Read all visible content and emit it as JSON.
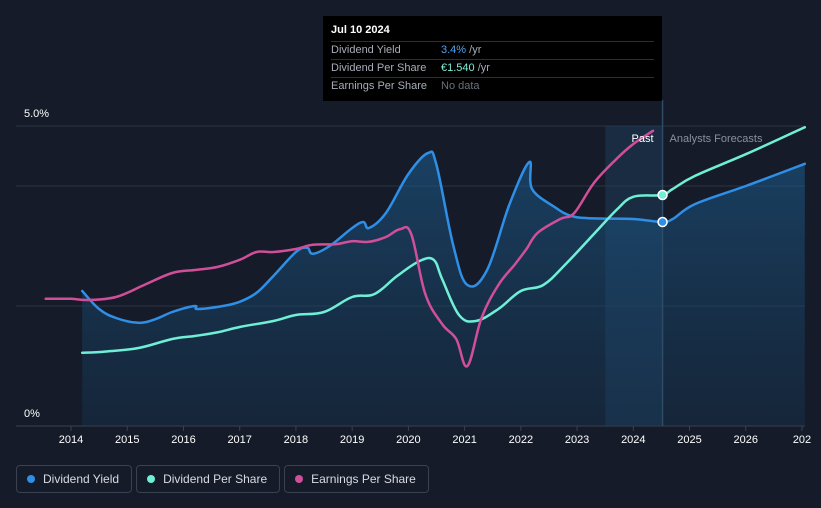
{
  "tooltip": {
    "date": "Jul 10 2024",
    "rows": [
      {
        "label": "Dividend Yield",
        "value": "3.4%",
        "unit": " /yr"
      },
      {
        "label": "Dividend Per Share",
        "value": "€1.540",
        "unit": " /yr"
      },
      {
        "label": "Earnings Per Share",
        "value": "No data",
        "unit": ""
      }
    ]
  },
  "legend": [
    {
      "label": "Dividend Yield",
      "color": "#2f8fe6"
    },
    {
      "label": "Dividend Per Share",
      "color": "#6ff0d6"
    },
    {
      "label": "Earnings Per Share",
      "color": "#d04f98"
    }
  ],
  "regions": {
    "past": "Past",
    "forecast": "Analysts Forecasts"
  },
  "chart_data": {
    "type": "line",
    "x_ticks": [
      "2014",
      "2015",
      "2016",
      "2017",
      "2018",
      "2019",
      "2020",
      "2021",
      "2022",
      "2023",
      "2024",
      "2025",
      "2026",
      "202"
    ],
    "y_tick_labels": [
      "5.0%",
      "0%"
    ],
    "ylim": [
      0,
      5
    ],
    "xlim": [
      2013.3,
      2027.05
    ],
    "grid": true,
    "legend_position": "bottom-left",
    "past_forecast_split": 2024.52,
    "series": [
      {
        "name": "Dividend Yield",
        "color": "#2f8fe6",
        "points": [
          [
            2014.2,
            2.25
          ],
          [
            2014.5,
            1.95
          ],
          [
            2014.8,
            1.8
          ],
          [
            2015.2,
            1.72
          ],
          [
            2015.5,
            1.78
          ],
          [
            2015.8,
            1.9
          ],
          [
            2016.2,
            2.0
          ],
          [
            2016.25,
            1.95
          ],
          [
            2016.7,
            2.0
          ],
          [
            2017.0,
            2.07
          ],
          [
            2017.3,
            2.22
          ],
          [
            2017.6,
            2.5
          ],
          [
            2018.0,
            2.9
          ],
          [
            2018.2,
            2.97
          ],
          [
            2018.3,
            2.87
          ],
          [
            2018.6,
            3.0
          ],
          [
            2019.0,
            3.3
          ],
          [
            2019.2,
            3.4
          ],
          [
            2019.3,
            3.3
          ],
          [
            2019.6,
            3.55
          ],
          [
            2020.0,
            4.2
          ],
          [
            2020.35,
            4.55
          ],
          [
            2020.5,
            4.35
          ],
          [
            2020.8,
            3.0
          ],
          [
            2021.05,
            2.35
          ],
          [
            2021.4,
            2.6
          ],
          [
            2021.8,
            3.7
          ],
          [
            2022.15,
            4.4
          ],
          [
            2022.2,
            3.95
          ],
          [
            2022.6,
            3.65
          ],
          [
            2022.9,
            3.5
          ],
          [
            2023.3,
            3.46
          ],
          [
            2024.0,
            3.45
          ],
          [
            2024.5,
            3.4
          ],
          [
            2024.7,
            3.45
          ],
          [
            2025.1,
            3.7
          ],
          [
            2026.0,
            4.0
          ],
          [
            2027.05,
            4.37
          ]
        ]
      },
      {
        "name": "Dividend Per Share",
        "color": "#6ff0d6",
        "points": [
          [
            2014.2,
            1.22
          ],
          [
            2014.6,
            1.24
          ],
          [
            2015.2,
            1.3
          ],
          [
            2015.8,
            1.45
          ],
          [
            2016.2,
            1.5
          ],
          [
            2016.6,
            1.56
          ],
          [
            2017.0,
            1.65
          ],
          [
            2017.6,
            1.75
          ],
          [
            2018.0,
            1.85
          ],
          [
            2018.5,
            1.9
          ],
          [
            2019.0,
            2.15
          ],
          [
            2019.4,
            2.2
          ],
          [
            2019.8,
            2.5
          ],
          [
            2020.2,
            2.75
          ],
          [
            2020.45,
            2.77
          ],
          [
            2020.6,
            2.45
          ],
          [
            2020.9,
            1.85
          ],
          [
            2021.2,
            1.75
          ],
          [
            2021.6,
            1.95
          ],
          [
            2022.0,
            2.25
          ],
          [
            2022.4,
            2.35
          ],
          [
            2022.8,
            2.7
          ],
          [
            2023.3,
            3.2
          ],
          [
            2023.7,
            3.6
          ],
          [
            2024.0,
            3.82
          ],
          [
            2024.5,
            3.85
          ],
          [
            2024.7,
            3.95
          ],
          [
            2025.1,
            4.17
          ],
          [
            2026.0,
            4.53
          ],
          [
            2027.05,
            4.98
          ]
        ]
      },
      {
        "name": "Earnings Per Share",
        "color": "#d04f98",
        "points": [
          [
            2013.55,
            2.12
          ],
          [
            2014.0,
            2.12
          ],
          [
            2014.3,
            2.1
          ],
          [
            2014.8,
            2.15
          ],
          [
            2015.3,
            2.35
          ],
          [
            2015.8,
            2.55
          ],
          [
            2016.2,
            2.6
          ],
          [
            2016.6,
            2.65
          ],
          [
            2017.0,
            2.77
          ],
          [
            2017.3,
            2.9
          ],
          [
            2017.6,
            2.9
          ],
          [
            2018.0,
            2.95
          ],
          [
            2018.3,
            3.02
          ],
          [
            2018.7,
            3.03
          ],
          [
            2019.0,
            3.08
          ],
          [
            2019.3,
            3.07
          ],
          [
            2019.6,
            3.15
          ],
          [
            2019.85,
            3.28
          ],
          [
            2020.05,
            3.2
          ],
          [
            2020.3,
            2.2
          ],
          [
            2020.6,
            1.7
          ],
          [
            2020.85,
            1.45
          ],
          [
            2021.05,
            1.0
          ],
          [
            2021.3,
            1.8
          ],
          [
            2021.6,
            2.35
          ],
          [
            2021.9,
            2.7
          ],
          [
            2022.1,
            2.95
          ],
          [
            2022.3,
            3.22
          ],
          [
            2022.7,
            3.45
          ],
          [
            2022.95,
            3.55
          ],
          [
            2023.3,
            4.05
          ],
          [
            2023.7,
            4.45
          ],
          [
            2024.0,
            4.7
          ],
          [
            2024.35,
            4.92
          ]
        ]
      }
    ],
    "markers": [
      {
        "series": "Dividend Per Share",
        "x": 2024.52,
        "y": 3.85
      },
      {
        "series": "Dividend Yield",
        "x": 2024.52,
        "y": 3.4
      }
    ]
  }
}
